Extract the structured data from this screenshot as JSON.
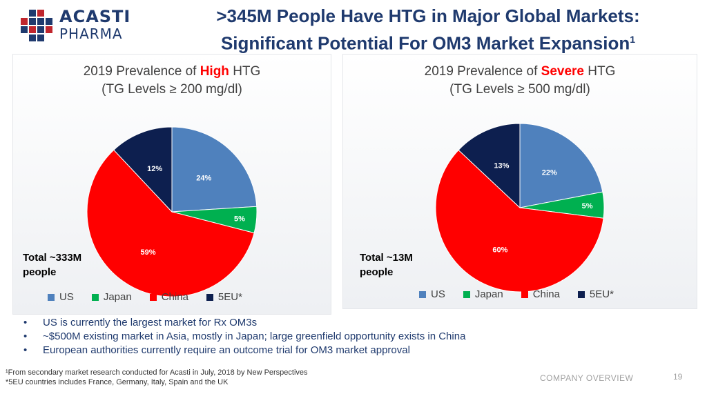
{
  "header": {
    "logo_line1": "ACASTI",
    "logo_line2": "PHARMA",
    "title_line1": ">345M People Have HTG in Major Global Markets:",
    "title_line2": "Significant Potential For OM3 Market Expansion",
    "title_superscript": "1"
  },
  "colors": {
    "US": "#4f81bd",
    "Japan": "#00b050",
    "China": "#ff0000",
    "5EU": "#0d1f4f",
    "highlight": "#ff0000",
    "navy_text": "#1f3a6e"
  },
  "chart_data": [
    {
      "type": "pie",
      "title_prefix": "2019 Prevalence of ",
      "title_highlight": "High",
      "title_suffix": " HTG",
      "subtitle": "(TG Levels ≥ 200 mg/dl)",
      "categories": [
        "US",
        "Japan",
        "China",
        "5EU*"
      ],
      "values": [
        24,
        5,
        59,
        12
      ],
      "labels": [
        "24%",
        "5%",
        "59%",
        "12%"
      ],
      "total_line1": "Total ~333M",
      "total_line2": "people",
      "legend_position": "bottom"
    },
    {
      "type": "pie",
      "title_prefix": "2019 Prevalence of ",
      "title_highlight": "Severe",
      "title_suffix": " HTG",
      "subtitle": "(TG Levels ≥ 500 mg/dl)",
      "categories": [
        "US",
        "Japan",
        "China",
        "5EU*"
      ],
      "values": [
        22,
        5,
        60,
        13
      ],
      "labels": [
        "22%",
        "5%",
        "60%",
        "13%"
      ],
      "total_line1": "Total ~13M",
      "total_line2": "people",
      "legend_position": "bottom"
    }
  ],
  "bullets": [
    "US is currently the largest market for Rx OM3s",
    "~$500M existing market in Asia, mostly in Japan; large greenfield opportunity exists in China",
    "European authorities currently require an outcome trial for OM3 market approval"
  ],
  "footnotes": {
    "note1": "¹From secondary market research conducted for Acasti in July, 2018 by New Perspectives",
    "note2": "*5EU countries includes France, Germany, Italy, Spain and the UK"
  },
  "footer": {
    "section": "COMPANY OVERVIEW",
    "page": "19"
  }
}
